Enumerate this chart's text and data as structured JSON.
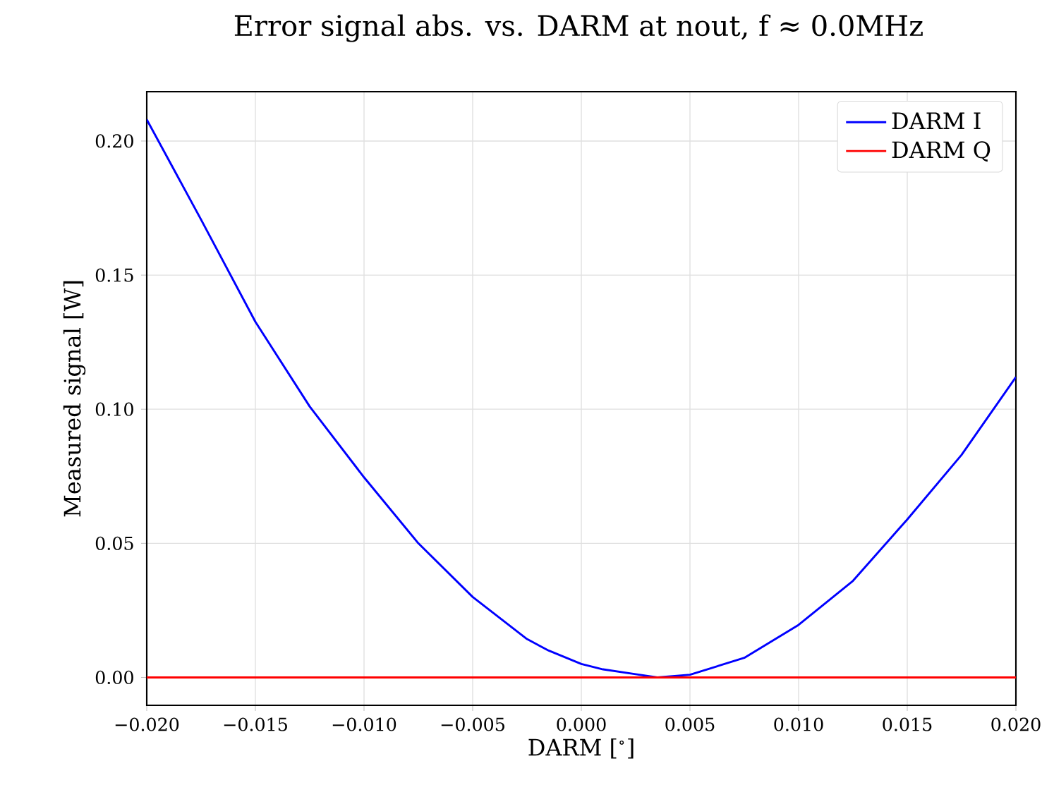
{
  "chart_data": {
    "type": "line",
    "title": "Error signal abs. vs. DARM at nout, f ≈ 0.0MHz",
    "xlabel": "DARM [$^{∘}$]",
    "ylabel": "Measured signal [W]",
    "x": [
      -0.02,
      -0.0175,
      -0.015,
      -0.0125,
      -0.01,
      -0.0075,
      -0.005,
      -0.0025,
      -0.0015,
      0.0,
      0.001,
      0.0025,
      0.0035,
      0.005,
      0.0075,
      0.01,
      0.0125,
      0.015,
      0.0175,
      0.02
    ],
    "series": [
      {
        "name": "DARM I",
        "color": "#0000ff",
        "values": [
          0.208,
          0.1707,
          0.1326,
          0.101,
          0.0746,
          0.05,
          0.03,
          0.0143,
          0.01,
          0.005,
          0.003,
          0.0012,
          0.0,
          0.001,
          0.0073,
          0.0196,
          0.036,
          0.0589,
          0.083,
          0.112
        ]
      },
      {
        "name": "DARM Q",
        "color": "#ff0000",
        "values": [
          0,
          0,
          0,
          0,
          0,
          0,
          0,
          0,
          0,
          0,
          0,
          0,
          0,
          0,
          0,
          0,
          0,
          0,
          0,
          0
        ]
      }
    ],
    "xlim": [
      -0.02,
      0.02
    ],
    "ylim": [
      -0.0104,
      0.2184
    ],
    "xticks": [
      {
        "value": -0.02,
        "label": "−0.020"
      },
      {
        "value": -0.015,
        "label": "−0.015"
      },
      {
        "value": -0.01,
        "label": "−0.010"
      },
      {
        "value": -0.005,
        "label": "−0.005"
      },
      {
        "value": 0.0,
        "label": "0.000"
      },
      {
        "value": 0.005,
        "label": "0.005"
      },
      {
        "value": 0.01,
        "label": "0.010"
      },
      {
        "value": 0.015,
        "label": "0.015"
      },
      {
        "value": 0.02,
        "label": "0.020"
      }
    ],
    "yticks": [
      {
        "value": 0.0,
        "label": "0.00"
      },
      {
        "value": 0.05,
        "label": "0.05"
      },
      {
        "value": 0.1,
        "label": "0.10"
      },
      {
        "value": 0.15,
        "label": "0.15"
      },
      {
        "value": 0.2,
        "label": "0.20"
      }
    ],
    "grid": true,
    "legend": "top right",
    "marker": "none",
    "line_style": "solid"
  }
}
